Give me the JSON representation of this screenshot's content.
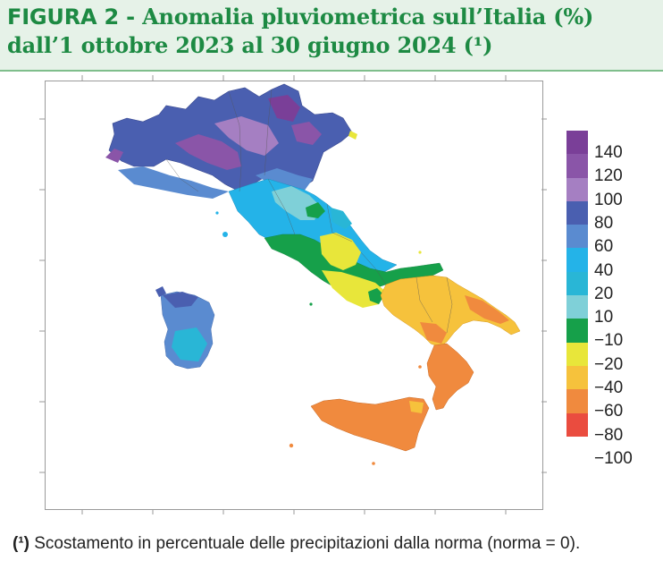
{
  "header": {
    "line1_lead": "FIGURA 2 - ",
    "line1_rest": "Anomalia pluviometrica sull’Italia (%)",
    "line2": "dall’1 ottobre 2023 al 30 giugno 2024 (¹)"
  },
  "legend": {
    "classes": [
      {
        "label": "140",
        "color": "#7a3f98"
      },
      {
        "label": "120",
        "color": "#8a55a8"
      },
      {
        "label": "100",
        "color": "#a57fc2"
      },
      {
        "label": "80",
        "color": "#4a5fb0"
      },
      {
        "label": "60",
        "color": "#5a8bd0"
      },
      {
        "label": "40",
        "color": "#24b3e8"
      },
      {
        "label": "20",
        "color": "#29b6d6"
      },
      {
        "label": "10",
        "color": "#7fd0d8"
      },
      {
        "label": "−10",
        "color": "#16a04a"
      },
      {
        "label": "−20",
        "color": "#e8e63a"
      },
      {
        "label": "−40",
        "color": "#f6c23c"
      },
      {
        "label": "−60",
        "color": "#f08a3e"
      },
      {
        "label": "−80",
        "color": "#ea4c3f"
      },
      {
        "label": "−100",
        "color": "#e6363d"
      }
    ]
  },
  "footnote": {
    "mark": "(¹)",
    "text": " Scostamento in percentuale delle precipitazioni dalla norma (norma = 0)."
  },
  "colors": {
    "header_text": "#1d8a43",
    "header_bg": "#e6f2e8"
  }
}
